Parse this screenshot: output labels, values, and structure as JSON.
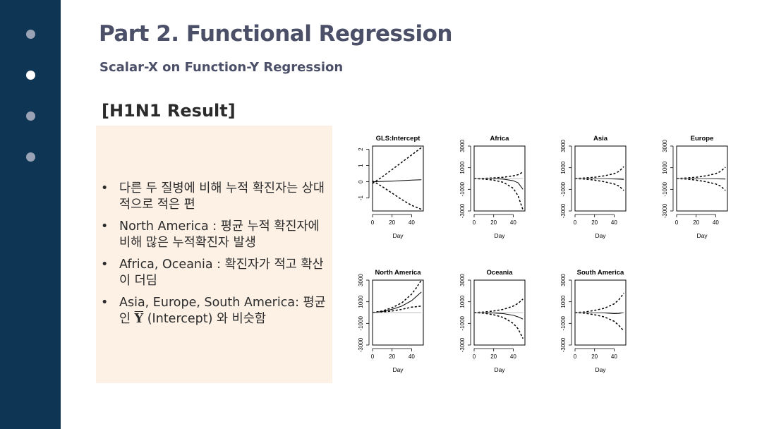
{
  "slide": {
    "title": "Part 2. Functional Regression",
    "subtitle": "Scalar-X on Function-Y Regression",
    "section": "[H1N1 Result]"
  },
  "nav": {
    "dots": 4,
    "active_index": 1
  },
  "bullets": [
    {
      "text": "다른 두 질병에 비해 누적 확진자는 상대적으로 적은 편"
    },
    {
      "text": "North America : 평균 누적 확진자에 비해 많은 누적확진자 발생"
    },
    {
      "text": "Africa, Oceania : 확진자가 적고 확산이 더딤"
    },
    {
      "pre": "Asia, Europe, South America: 평균인 ",
      "ybar": "Y",
      "post": " (Intercept) 와 비슷함"
    }
  ],
  "colors": {
    "sidebar": "#0e3554",
    "note_bg": "#fdf1e6",
    "title": "#4b5068"
  },
  "chart_data": [
    {
      "type": "line",
      "title": "GLS:Intercept",
      "xlabel": "Day",
      "xlim": [
        0,
        52
      ],
      "ylim": [
        -1.8,
        2.2
      ],
      "xticks": [
        0,
        20,
        40
      ],
      "yticks": [
        -1,
        0,
        1,
        2
      ],
      "x": [
        0,
        10,
        20,
        30,
        40,
        50
      ],
      "series": [
        {
          "style": "solid",
          "values": [
            0,
            0.02,
            0.04,
            0.07,
            0.1,
            0.12
          ]
        },
        {
          "style": "dashed",
          "values": [
            -0.1,
            0.3,
            0.75,
            1.2,
            1.65,
            2.1
          ]
        },
        {
          "style": "dashed",
          "values": [
            0.05,
            -0.3,
            -0.7,
            -1.1,
            -1.45,
            -1.7
          ]
        }
      ]
    },
    {
      "type": "line",
      "title": "Africa",
      "xlabel": "Day",
      "xlim": [
        0,
        52
      ],
      "ylim": [
        -3000,
        3000
      ],
      "xticks": [
        0,
        20,
        40
      ],
      "yticks": [
        -3000,
        -1000,
        1000,
        3000
      ],
      "x": [
        0,
        10,
        20,
        30,
        40,
        45,
        50
      ],
      "series": [
        {
          "style": "solid",
          "values": [
            0,
            0,
            -20,
            -60,
            -200,
            -400,
            -1000
          ]
        },
        {
          "style": "dashed",
          "values": [
            0,
            20,
            60,
            120,
            250,
            350,
            600
          ]
        },
        {
          "style": "dashed",
          "values": [
            0,
            -50,
            -150,
            -350,
            -900,
            -1600,
            -2900
          ]
        },
        {
          "style": "gray",
          "values": [
            0,
            0,
            0,
            0,
            0,
            0,
            0
          ]
        }
      ]
    },
    {
      "type": "line",
      "title": "Asia",
      "xlabel": "Day",
      "xlim": [
        0,
        52
      ],
      "ylim": [
        -3000,
        3000
      ],
      "xticks": [
        0,
        20,
        40
      ],
      "yticks": [
        -3000,
        -1000,
        1000,
        3000
      ],
      "x": [
        0,
        10,
        20,
        30,
        40,
        45,
        50
      ],
      "series": [
        {
          "style": "solid",
          "values": [
            0,
            0,
            -10,
            -20,
            -40,
            -60,
            -80
          ]
        },
        {
          "style": "dashed",
          "values": [
            0,
            50,
            120,
            250,
            450,
            650,
            1100
          ]
        },
        {
          "style": "dashed",
          "values": [
            0,
            -50,
            -150,
            -300,
            -500,
            -700,
            -1100
          ]
        },
        {
          "style": "gray",
          "values": [
            0,
            0,
            0,
            0,
            0,
            0,
            0
          ]
        }
      ]
    },
    {
      "type": "line",
      "title": "Europe",
      "xlabel": "Day",
      "xlim": [
        0,
        52
      ],
      "ylim": [
        -3000,
        3000
      ],
      "xticks": [
        0,
        20,
        40
      ],
      "yticks": [
        -3000,
        -1000,
        1000,
        3000
      ],
      "x": [
        0,
        10,
        20,
        30,
        40,
        45,
        50
      ],
      "series": [
        {
          "style": "solid",
          "values": [
            0,
            0,
            -10,
            -20,
            -30,
            -40,
            -50
          ]
        },
        {
          "style": "dashed",
          "values": [
            0,
            50,
            120,
            250,
            450,
            650,
            1050
          ]
        },
        {
          "style": "dashed",
          "values": [
            0,
            -50,
            -150,
            -300,
            -500,
            -700,
            -1100
          ]
        },
        {
          "style": "gray",
          "values": [
            0,
            0,
            0,
            0,
            0,
            0,
            0
          ]
        }
      ]
    },
    {
      "type": "line",
      "title": "North America",
      "xlabel": "Day",
      "xlim": [
        0,
        52
      ],
      "ylim": [
        -3000,
        3000
      ],
      "xticks": [
        0,
        20,
        40
      ],
      "yticks": [
        -3000,
        -1000,
        1000,
        3000
      ],
      "x": [
        0,
        10,
        20,
        30,
        40,
        45,
        50
      ],
      "series": [
        {
          "style": "solid",
          "values": [
            0,
            100,
            300,
            600,
            1100,
            1500,
            1900
          ]
        },
        {
          "style": "dashed",
          "values": [
            0,
            150,
            450,
            900,
            1700,
            2300,
            3000
          ]
        },
        {
          "style": "dashed",
          "values": [
            0,
            50,
            150,
            300,
            500,
            550,
            600
          ]
        },
        {
          "style": "gray",
          "values": [
            0,
            0,
            0,
            0,
            0,
            0,
            0
          ]
        }
      ]
    },
    {
      "type": "line",
      "title": "Oceania",
      "xlabel": "Day",
      "xlim": [
        0,
        52
      ],
      "ylim": [
        -3000,
        3000
      ],
      "xticks": [
        0,
        20,
        40
      ],
      "yticks": [
        -3000,
        -1000,
        1000,
        3000
      ],
      "x": [
        0,
        10,
        20,
        30,
        40,
        45,
        50
      ],
      "series": [
        {
          "style": "solid",
          "values": [
            0,
            -10,
            -40,
            -100,
            -250,
            -400,
            -600
          ]
        },
        {
          "style": "dashed",
          "values": [
            0,
            50,
            150,
            300,
            600,
            850,
            1250
          ]
        },
        {
          "style": "dashed",
          "values": [
            0,
            -60,
            -200,
            -450,
            -1000,
            -1500,
            -2400
          ]
        },
        {
          "style": "gray",
          "values": [
            0,
            0,
            0,
            0,
            0,
            0,
            0
          ]
        }
      ]
    },
    {
      "type": "line",
      "title": "South America",
      "xlabel": "Day",
      "xlim": [
        0,
        52
      ],
      "ylim": [
        -3000,
        3000
      ],
      "xticks": [
        0,
        20,
        40
      ],
      "yticks": [
        -3000,
        -1000,
        1000,
        3000
      ],
      "x": [
        0,
        10,
        20,
        30,
        40,
        45,
        50
      ],
      "series": [
        {
          "style": "solid",
          "values": [
            0,
            0,
            -10,
            -30,
            -100,
            -80,
            0
          ]
        },
        {
          "style": "dashed",
          "values": [
            0,
            60,
            200,
            400,
            800,
            1200,
            1800
          ]
        },
        {
          "style": "dashed",
          "values": [
            0,
            -60,
            -200,
            -400,
            -800,
            -1200,
            -1700
          ]
        },
        {
          "style": "gray",
          "values": [
            0,
            0,
            0,
            0,
            0,
            0,
            0
          ]
        }
      ]
    }
  ]
}
